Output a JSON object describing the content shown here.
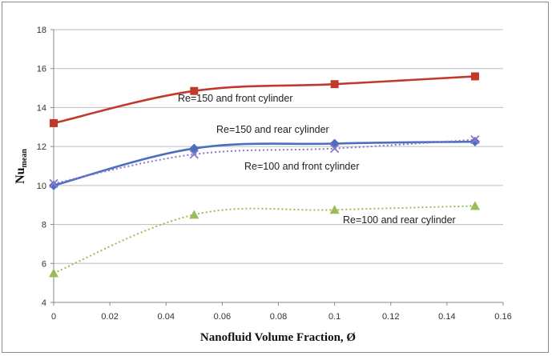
{
  "chart_data": {
    "type": "line",
    "xlabel": "Nanofluid Volume Fraction, Ø",
    "ylabel": "Nu",
    "ylabel_subscript": "mean",
    "xlim": [
      0,
      0.16
    ],
    "ylim": [
      4,
      18
    ],
    "xticks": [
      "0",
      "0.02",
      "0.04",
      "0.06",
      "0.08",
      "0.1",
      "0.12",
      "0.14",
      "0.16"
    ],
    "yticks": [
      "4",
      "6",
      "8",
      "10",
      "12",
      "14",
      "16",
      "18"
    ],
    "grid": "horizontal",
    "x": [
      0,
      0.05,
      0.1,
      0.15
    ],
    "series": [
      {
        "name": "Re=150 and front cylinder",
        "values": [
          13.2,
          14.85,
          15.2,
          15.6
        ],
        "color": "#c0392b",
        "marker": "square",
        "dash": false
      },
      {
        "name": "Re=150 and rear cylinder",
        "values": [
          10.0,
          11.9,
          12.15,
          12.25
        ],
        "color": "#4a6fc1",
        "marker": "diamond",
        "dash": false
      },
      {
        "name": "Re=100 and front cylinder",
        "values": [
          10.1,
          11.6,
          11.9,
          12.35
        ],
        "color": "#8878c8",
        "marker": "x",
        "dash": true
      },
      {
        "name": "Re=100 and rear cylinder",
        "values": [
          5.5,
          8.5,
          8.75,
          8.95
        ],
        "color": "#9bbb59",
        "marker": "triangle",
        "dash": true
      }
    ]
  }
}
